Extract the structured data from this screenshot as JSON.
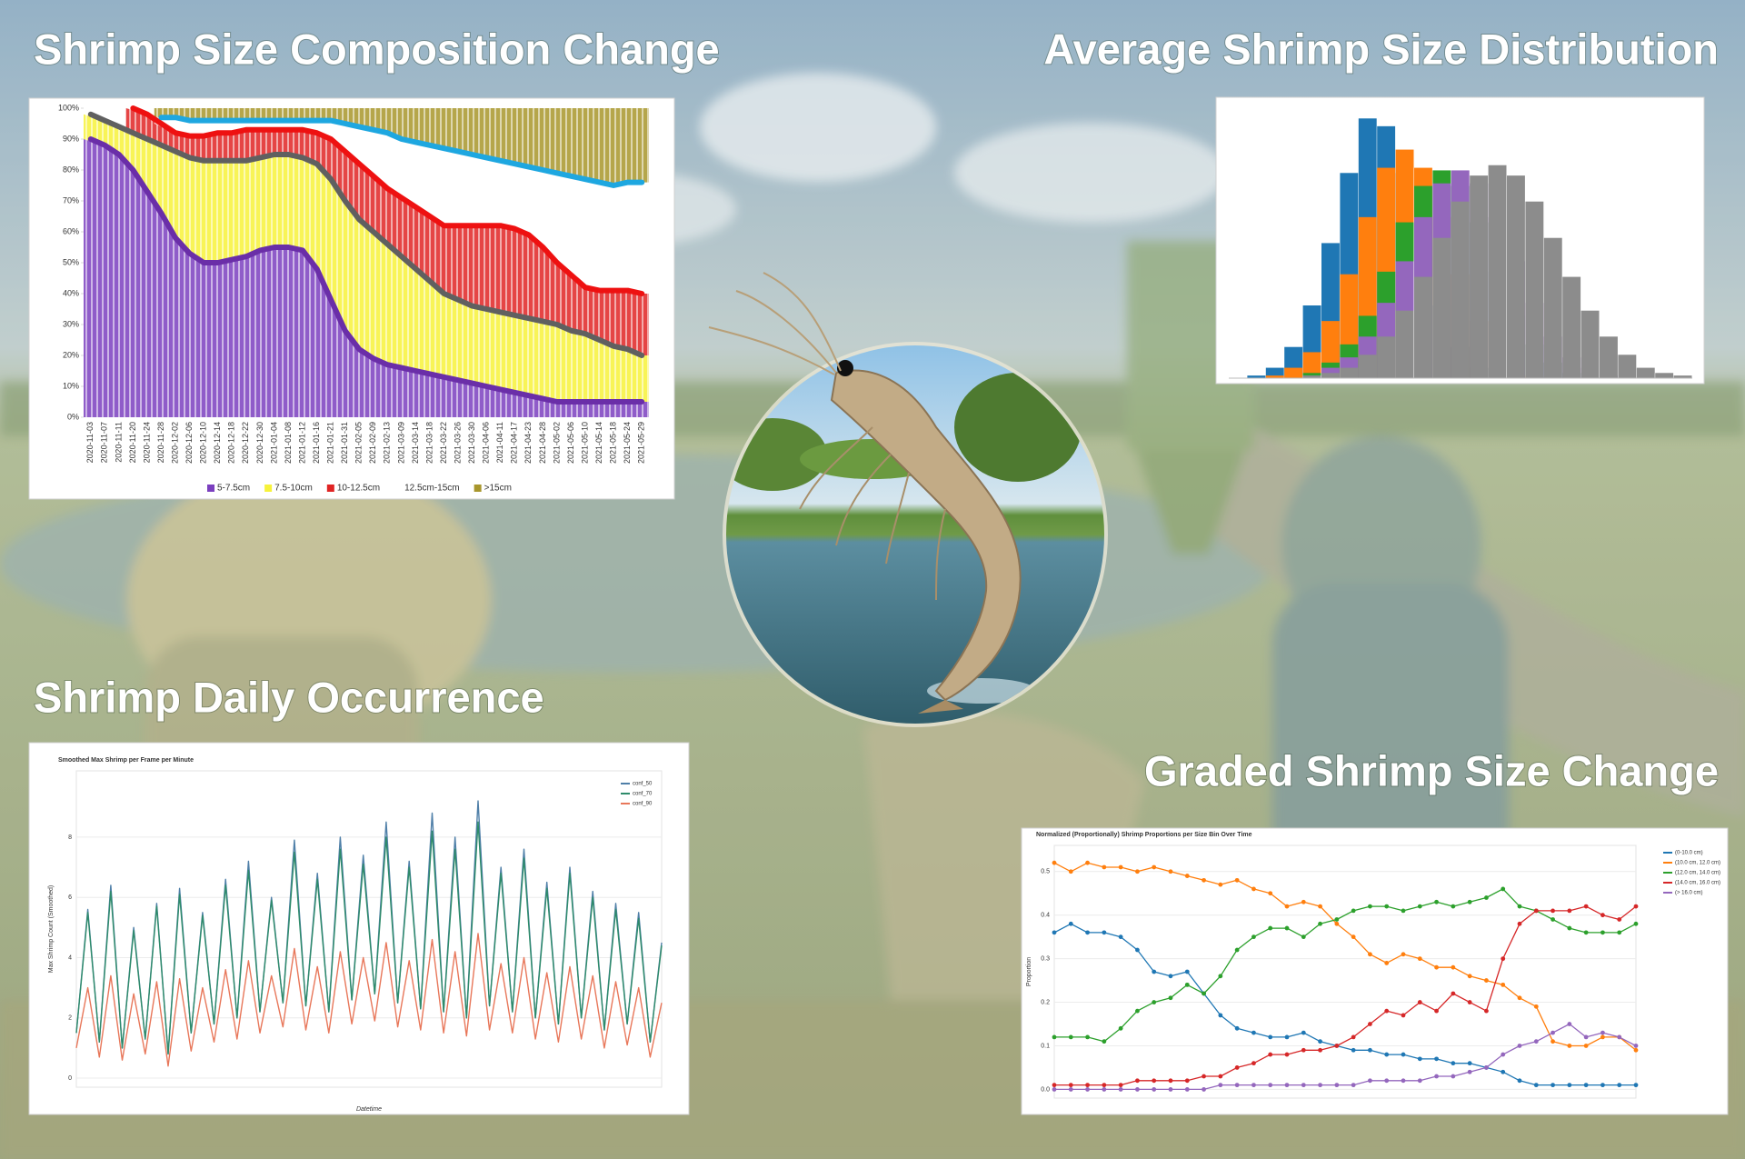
{
  "chart_data": [
    {
      "type": "area",
      "heading": "Shrimp Size Composition Change",
      "categories": [
        "2020-11-03",
        "2020-11-07",
        "2020-11-11",
        "2020-11-20",
        "2020-11-24",
        "2020-11-28",
        "2020-12-02",
        "2020-12-06",
        "2020-12-10",
        "2020-12-14",
        "2020-12-18",
        "2020-12-22",
        "2020-12-30",
        "2021-01-04",
        "2021-01-08",
        "2021-01-12",
        "2021-01-16",
        "2021-01-21",
        "2021-01-31",
        "2021-02-05",
        "2021-02-09",
        "2021-02-13",
        "2021-03-09",
        "2021-03-14",
        "2021-03-18",
        "2021-03-22",
        "2021-03-26",
        "2021-03-30",
        "2021-04-06",
        "2021-04-11",
        "2021-04-17",
        "2021-04-23",
        "2021-04-28",
        "2021-05-02",
        "2021-05-06",
        "2021-05-10",
        "2021-05-14",
        "2021-05-18",
        "2021-05-24",
        "2021-05-29"
      ],
      "series": [
        {
          "color": "#6a2ea8",
          "values": [
            90,
            88,
            85,
            80,
            73,
            66,
            58,
            53,
            50,
            50,
            51,
            52,
            54,
            55,
            55,
            54,
            48,
            38,
            28,
            22,
            19,
            17,
            16,
            15,
            14,
            13,
            12,
            11,
            10,
            9,
            8,
            7,
            6,
            5,
            5,
            5,
            5,
            5,
            5,
            5
          ]
        },
        {
          "color": "#606060",
          "values": [
            98,
            96,
            94,
            92,
            90,
            88,
            86,
            84,
            83,
            83,
            83,
            83,
            84,
            85,
            85,
            84,
            82,
            77,
            70,
            64,
            60,
            56,
            52,
            48,
            44,
            40,
            38,
            36,
            35,
            34,
            33,
            32,
            31,
            30,
            28,
            27,
            25,
            23,
            22,
            20
          ]
        },
        {
          "color": "#ee1111",
          "values": [
            null,
            null,
            null,
            100,
            98,
            95,
            92,
            91,
            91,
            92,
            92,
            93,
            93,
            93,
            93,
            93,
            92,
            90,
            86,
            82,
            78,
            74,
            71,
            68,
            65,
            62,
            62,
            62,
            62,
            62,
            61,
            59,
            55,
            50,
            46,
            42,
            41,
            41,
            41,
            40
          ]
        },
        {
          "color": "#1ea7e0",
          "values": [
            null,
            null,
            null,
            null,
            null,
            97,
            97,
            96,
            96,
            96,
            96,
            96,
            96,
            96,
            96,
            96,
            96,
            96,
            95,
            94,
            93,
            92,
            90,
            89,
            88,
            87,
            86,
            85,
            84,
            83,
            82,
            81,
            80,
            79,
            78,
            77,
            76,
            75,
            76,
            76
          ]
        }
      ],
      "legend": [
        {
          "name": "5-7.5cm",
          "color": "#7b3fbf"
        },
        {
          "name": "7.5-10cm",
          "color": "#f7f23a"
        },
        {
          "name": "10-12.5cm",
          "color": "#e02424"
        },
        {
          "name": "12.5cm-15cm",
          "color": "#ffffff"
        },
        {
          "name": ">15cm",
          "color": "#a8962c"
        }
      ],
      "ylim": [
        0,
        100
      ],
      "yticks": [
        {
          "value": 0,
          "label": "0%"
        },
        {
          "value": 10,
          "label": "10%"
        },
        {
          "value": 20,
          "label": "20%"
        },
        {
          "value": 30,
          "label": "30%"
        },
        {
          "value": 40,
          "label": "40%"
        },
        {
          "value": 50,
          "label": "50%"
        },
        {
          "value": 60,
          "label": "60%"
        },
        {
          "value": 70,
          "label": "70%"
        },
        {
          "value": 80,
          "label": "80%"
        },
        {
          "value": 90,
          "label": "90%"
        },
        {
          "value": 100,
          "label": "100%"
        }
      ]
    },
    {
      "type": "histogram",
      "heading": "Average Shrimp Size Distribution",
      "bins": [
        0,
        1,
        2,
        3,
        4,
        5,
        6,
        7,
        8,
        9,
        10,
        11,
        12,
        13,
        14,
        15,
        16,
        17,
        18,
        19,
        20,
        21,
        22,
        23,
        24,
        25
      ],
      "xlim": [
        0,
        25
      ],
      "ylim": [
        0,
        105
      ],
      "series": [
        {
          "color": "#1f77b4",
          "values": [
            0,
            1,
            4,
            12,
            28,
            52,
            79,
            100,
            97,
            79,
            52,
            28,
            12,
            4,
            1,
            0,
            0,
            0,
            0,
            0,
            0,
            0,
            0,
            0,
            0
          ]
        },
        {
          "color": "#ff7f0e",
          "values": [
            0,
            0,
            1,
            4,
            10,
            22,
            40,
            62,
            81,
            88,
            81,
            62,
            40,
            22,
            10,
            4,
            1,
            0,
            0,
            0,
            0,
            0,
            0,
            0,
            0
          ]
        },
        {
          "color": "#2ca02c",
          "values": [
            0,
            0,
            0,
            0,
            2,
            6,
            13,
            24,
            41,
            60,
            74,
            80,
            74,
            60,
            41,
            24,
            13,
            6,
            2,
            0,
            0,
            0,
            0,
            0,
            0
          ]
        },
        {
          "color": "#9467bd",
          "values": [
            0,
            0,
            0,
            0,
            1,
            4,
            8,
            16,
            29,
            45,
            62,
            75,
            80,
            75,
            62,
            45,
            29,
            16,
            8,
            4,
            1,
            0,
            0,
            0,
            0
          ]
        },
        {
          "color": "#8c8c8c",
          "values": [
            0,
            0,
            0,
            0,
            1,
            2,
            4,
            9,
            16,
            26,
            39,
            54,
            68,
            78,
            82,
            78,
            68,
            54,
            39,
            26,
            16,
            9,
            4,
            2,
            1
          ]
        }
      ]
    },
    {
      "type": "line",
      "heading": "Shrimp Daily Occurrence",
      "title": "Smoothed Max Shrimp per Frame per Minute",
      "xlabel": "Datetime",
      "ylabel": "Max Shrimp Count (Smoothed)",
      "ylim": [
        -0.3,
        10.2
      ],
      "yticks": [
        0,
        2,
        4,
        6,
        8
      ],
      "grid": true,
      "dots": false,
      "series": [
        {
          "name": "conf_50",
          "color": "#4f7fa8",
          "values": [
            1.5,
            5.6,
            1.2,
            6.4,
            1.0,
            5.0,
            1.3,
            5.8,
            0.8,
            6.3,
            1.5,
            5.5,
            1.8,
            6.6,
            2.0,
            7.2,
            2.2,
            6.0,
            2.5,
            7.9,
            2.4,
            6.8,
            2.2,
            8.0,
            2.6,
            7.4,
            2.8,
            8.5,
            2.5,
            7.2,
            2.3,
            8.8,
            2.2,
            8.0,
            2.0,
            9.2,
            2.4,
            7.0,
            2.2,
            7.6,
            2.0,
            6.5,
            1.8,
            7.0,
            2.0,
            6.2,
            1.6,
            5.8,
            1.8,
            5.5,
            1.2,
            4.5
          ]
        },
        {
          "name": "conf_70",
          "color": "#2e8b6a",
          "values": [
            1.5,
            5.5,
            1.2,
            6.2,
            1.0,
            4.9,
            1.3,
            5.7,
            0.8,
            6.1,
            1.5,
            5.4,
            1.8,
            6.4,
            2.0,
            6.9,
            2.2,
            5.9,
            2.5,
            7.5,
            2.4,
            6.6,
            2.2,
            7.6,
            2.6,
            7.1,
            2.8,
            8.0,
            2.5,
            7.0,
            2.3,
            8.2,
            2.2,
            7.6,
            2.0,
            8.5,
            2.4,
            6.8,
            2.2,
            7.3,
            2.0,
            6.3,
            1.8,
            6.8,
            2.0,
            6.0,
            1.6,
            5.6,
            1.8,
            5.3,
            1.2,
            4.4
          ]
        },
        {
          "name": "conf_90",
          "color": "#e8775a",
          "values": [
            1.0,
            3.0,
            0.7,
            3.4,
            0.6,
            2.8,
            0.8,
            3.2,
            0.4,
            3.3,
            0.9,
            3.0,
            1.2,
            3.6,
            1.3,
            3.9,
            1.5,
            3.4,
            1.7,
            4.3,
            1.6,
            3.7,
            1.5,
            4.2,
            1.8,
            4.0,
            1.9,
            4.5,
            1.7,
            3.9,
            1.6,
            4.6,
            1.5,
            4.2,
            1.4,
            4.8,
            1.6,
            3.8,
            1.5,
            4.0,
            1.3,
            3.5,
            1.2,
            3.7,
            1.3,
            3.4,
            1.0,
            3.2,
            1.1,
            3.0,
            0.7,
            2.5
          ]
        }
      ]
    },
    {
      "type": "line",
      "heading": "Graded Shrimp Size Change",
      "title": "Normalized (Proportionally) Shrimp Proportions per Size Bin Over Time",
      "ylabel": "Proportion",
      "ylim": [
        -0.02,
        0.56
      ],
      "yticks": [
        {
          "value": 0,
          "label": "0.0"
        },
        0.1,
        0.2,
        0.3,
        0.4,
        0.5
      ],
      "grid": true,
      "dots": true,
      "series": [
        {
          "name": "(0-10.0 cm)",
          "color": "#1f77b4",
          "values": [
            0.36,
            0.38,
            0.36,
            0.36,
            0.35,
            0.32,
            0.27,
            0.26,
            0.27,
            0.22,
            0.17,
            0.14,
            0.13,
            0.12,
            0.12,
            0.13,
            0.11,
            0.1,
            0.09,
            0.09,
            0.08,
            0.08,
            0.07,
            0.07,
            0.06,
            0.06,
            0.05,
            0.04,
            0.02,
            0.01,
            0.01,
            0.01,
            0.01,
            0.01,
            0.01,
            0.01
          ]
        },
        {
          "name": "(10.0 cm, 12.0 cm)",
          "color": "#ff7f0e",
          "values": [
            0.52,
            0.5,
            0.52,
            0.51,
            0.51,
            0.5,
            0.51,
            0.5,
            0.49,
            0.48,
            0.47,
            0.48,
            0.46,
            0.45,
            0.42,
            0.43,
            0.42,
            0.38,
            0.35,
            0.31,
            0.29,
            0.31,
            0.3,
            0.28,
            0.28,
            0.26,
            0.25,
            0.24,
            0.21,
            0.19,
            0.11,
            0.1,
            0.1,
            0.12,
            0.12,
            0.09
          ]
        },
        {
          "name": "(12.0 cm, 14.0 cm)",
          "color": "#2ca02c",
          "values": [
            0.12,
            0.12,
            0.12,
            0.11,
            0.14,
            0.18,
            0.2,
            0.21,
            0.24,
            0.22,
            0.26,
            0.32,
            0.35,
            0.37,
            0.37,
            0.35,
            0.38,
            0.39,
            0.41,
            0.42,
            0.42,
            0.41,
            0.42,
            0.43,
            0.42,
            0.43,
            0.44,
            0.46,
            0.42,
            0.41,
            0.39,
            0.37,
            0.36,
            0.36,
            0.36,
            0.38
          ]
        },
        {
          "name": "(14.0 cm, 16.0 cm)",
          "color": "#d62728",
          "values": [
            0.01,
            0.01,
            0.01,
            0.01,
            0.01,
            0.02,
            0.02,
            0.02,
            0.02,
            0.03,
            0.03,
            0.05,
            0.06,
            0.08,
            0.08,
            0.09,
            0.09,
            0.1,
            0.12,
            0.15,
            0.18,
            0.17,
            0.2,
            0.18,
            0.22,
            0.2,
            0.18,
            0.3,
            0.38,
            0.41,
            0.41,
            0.41,
            0.42,
            0.4,
            0.39,
            0.42
          ]
        },
        {
          "name": "(> 16.0 cm)",
          "color": "#9467bd",
          "values": [
            0,
            0,
            0,
            0,
            0,
            0,
            0,
            0,
            0,
            0,
            0.01,
            0.01,
            0.01,
            0.01,
            0.01,
            0.01,
            0.01,
            0.01,
            0.01,
            0.02,
            0.02,
            0.02,
            0.02,
            0.03,
            0.03,
            0.04,
            0.05,
            0.08,
            0.1,
            0.11,
            0.13,
            0.15,
            0.12,
            0.13,
            0.12,
            0.1
          ]
        }
      ]
    }
  ]
}
